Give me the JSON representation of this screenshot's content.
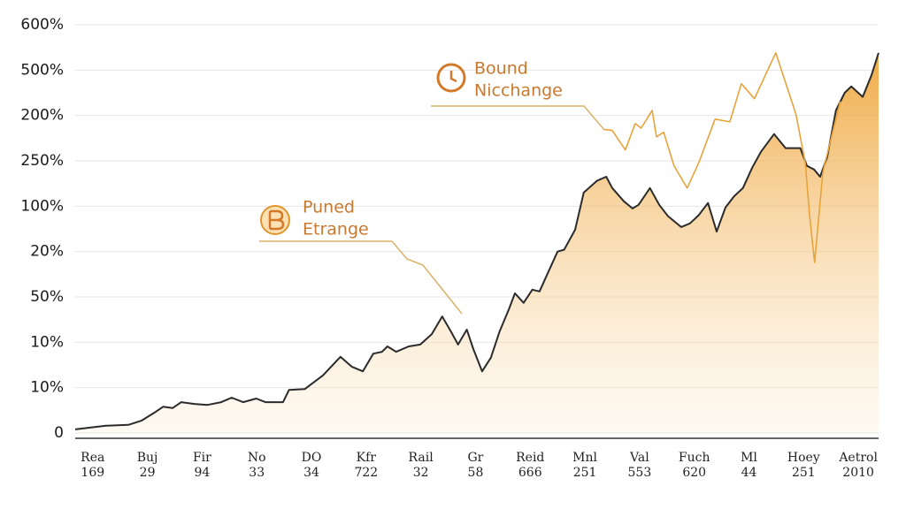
{
  "chart_data": {
    "type": "area",
    "categories": [
      [
        "Rea",
        "169"
      ],
      [
        "Buj",
        "29"
      ],
      [
        "Fir",
        "94"
      ],
      [
        "No",
        "33"
      ],
      [
        "DO",
        "34"
      ],
      [
        "Kfr",
        "722"
      ],
      [
        "Rail",
        "32"
      ],
      [
        "Gr",
        "58"
      ],
      [
        "Reid",
        "666"
      ],
      [
        "Mnl",
        "251"
      ],
      [
        "Val",
        "553"
      ],
      [
        "Fuch",
        "620"
      ],
      [
        "Ml",
        "44"
      ],
      [
        "Hoey",
        "251"
      ],
      [
        "Aetrol",
        "2010"
      ]
    ],
    "xlim": [
      -0.32,
      14.37
    ],
    "ylim": [
      0,
      9
    ],
    "yticks": [
      {
        "value": 0,
        "label": "0"
      },
      {
        "value": 1,
        "label": "10%"
      },
      {
        "value": 2,
        "label": "10%"
      },
      {
        "value": 3,
        "label": "50%"
      },
      {
        "value": 4,
        "label": "20%"
      },
      {
        "value": 5,
        "label": "100%"
      },
      {
        "value": 6,
        "label": "250%"
      },
      {
        "value": 7,
        "label": "200%"
      },
      {
        "value": 8,
        "label": "500%"
      },
      {
        "value": 9,
        "label": "600%"
      }
    ],
    "grid": true,
    "series": [
      {
        "color": "#2b2b2b",
        "fill": "#f2b04e",
        "x": [
          -0.32,
          0.24,
          0.65,
          0.89,
          1.13,
          1.29,
          1.46,
          1.62,
          1.86,
          2.1,
          2.35,
          2.54,
          2.75,
          2.99,
          3.16,
          3.48,
          3.59,
          3.88,
          4.21,
          4.53,
          4.74,
          4.94,
          5.13,
          5.29,
          5.39,
          5.55,
          5.78,
          5.99,
          6.2,
          6.39,
          6.55,
          6.68,
          6.84,
          6.96,
          7.12,
          7.28,
          7.44,
          7.61,
          7.72,
          7.88,
          8.04,
          8.17,
          8.33,
          8.5,
          8.62,
          8.82,
          8.98,
          9.22,
          9.39,
          9.5,
          9.71,
          9.87,
          9.98,
          10.19,
          10.36,
          10.52,
          10.76,
          10.92,
          11.08,
          11.25,
          11.41,
          11.57,
          11.73,
          11.89,
          12.06,
          12.22,
          12.46,
          12.67,
          12.94,
          13.06,
          13.19,
          13.3,
          13.43,
          13.59,
          13.75,
          13.87,
          14.08,
          14.24,
          14.37
        ],
        "values": [
          0.08,
          0.16,
          0.18,
          0.27,
          0.45,
          0.58,
          0.55,
          0.68,
          0.64,
          0.62,
          0.68,
          0.78,
          0.68,
          0.76,
          0.68,
          0.68,
          0.95,
          0.97,
          1.27,
          1.68,
          1.46,
          1.36,
          1.75,
          1.79,
          1.91,
          1.79,
          1.91,
          1.95,
          2.18,
          2.57,
          2.24,
          1.95,
          2.28,
          1.85,
          1.36,
          1.66,
          2.24,
          2.73,
          3.08,
          2.87,
          3.16,
          3.12,
          3.55,
          4.0,
          4.04,
          4.48,
          5.3,
          5.56,
          5.65,
          5.4,
          5.11,
          4.95,
          5.03,
          5.4,
          5.03,
          4.78,
          4.54,
          4.62,
          4.8,
          5.07,
          4.44,
          4.97,
          5.22,
          5.4,
          5.85,
          6.2,
          6.59,
          6.28,
          6.28,
          5.89,
          5.81,
          5.65,
          6.08,
          7.11,
          7.5,
          7.64,
          7.41,
          7.89,
          8.38
        ]
      },
      {
        "color": "#e8a33a",
        "x": [
          9.35,
          9.5,
          9.74,
          9.92,
          10.03,
          10.23,
          10.31,
          10.44,
          10.63,
          10.87,
          11.08,
          11.38,
          11.65,
          11.86,
          12.1,
          12.49,
          12.86,
          13.03,
          13.11,
          13.2,
          13.35,
          13.51,
          13.67
        ],
        "values": [
          6.69,
          6.67,
          6.24,
          6.82,
          6.72,
          7.11,
          6.53,
          6.63,
          5.89,
          5.4,
          5.95,
          6.92,
          6.86,
          7.7,
          7.37,
          8.38,
          7.02,
          5.95,
          4.78,
          3.76,
          5.75,
          6.53,
          7.31
        ]
      }
    ],
    "annotations": [
      [
        "Bound",
        "Nicchange"
      ],
      [
        "Puned",
        "Etrange"
      ]
    ]
  }
}
